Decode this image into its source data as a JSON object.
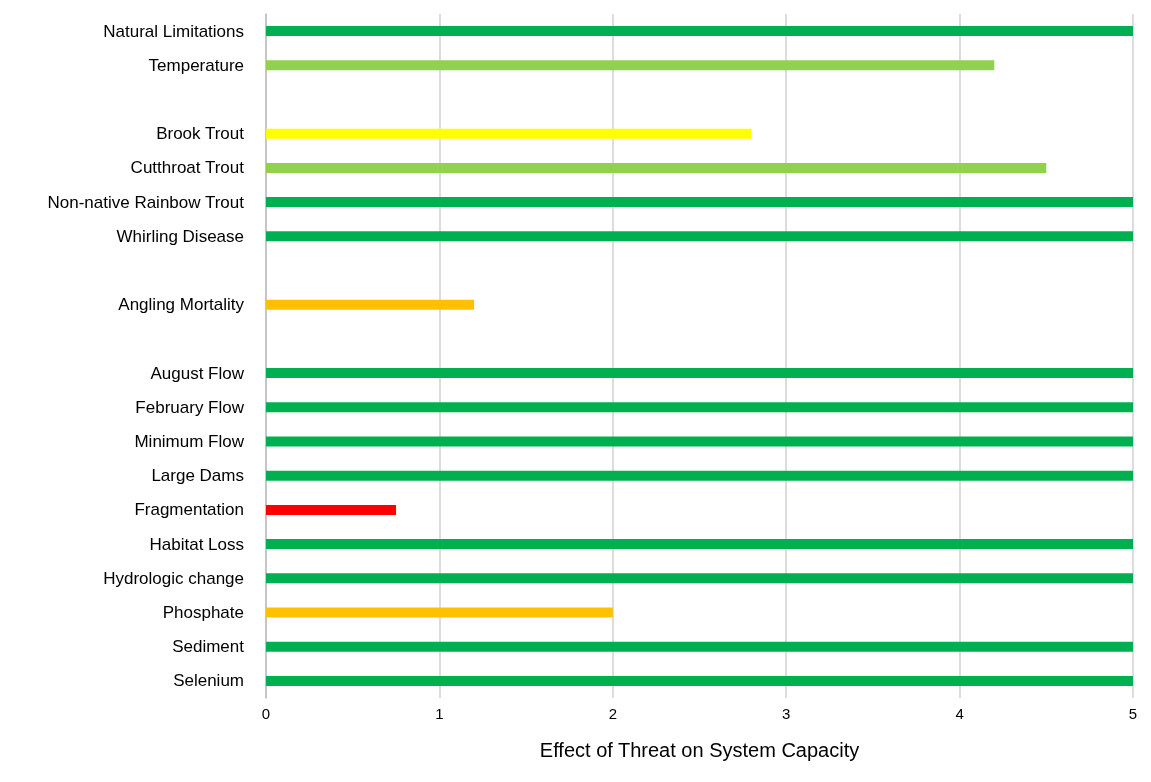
{
  "chart_data": {
    "type": "bar",
    "orientation": "horizontal",
    "xlabel": "Effect of Threat on System Capacity",
    "categories": [
      "Natural Limitations",
      "Temperature",
      null,
      "Brook Trout",
      "Cutthroat Trout",
      "Non-native Rainbow Trout",
      "Whirling Disease",
      null,
      "Angling Mortality",
      null,
      "August Flow",
      "February Flow",
      "Minimum Flow",
      "Large Dams",
      "Fragmentation",
      "Habitat Loss",
      "Hydrologic change",
      "Phosphate",
      "Sediment",
      "Selenium"
    ],
    "values": [
      5,
      4.2,
      null,
      2.8,
      4.5,
      5,
      5,
      null,
      1.2,
      null,
      5,
      5,
      5,
      5,
      0.75,
      5,
      5,
      2,
      5,
      5
    ],
    "colors": [
      "#00b050",
      "#92d050",
      null,
      "#ffff00",
      "#92d050",
      "#00b050",
      "#00b050",
      null,
      "#ffc000",
      null,
      "#00b050",
      "#00b050",
      "#00b050",
      "#00b050",
      "#ff0000",
      "#00b050",
      "#00b050",
      "#ffc000",
      "#00b050",
      "#00b050"
    ],
    "xlim": [
      0,
      5
    ],
    "xticks": [
      0,
      1,
      2,
      3,
      4,
      5
    ],
    "grid": "x"
  }
}
